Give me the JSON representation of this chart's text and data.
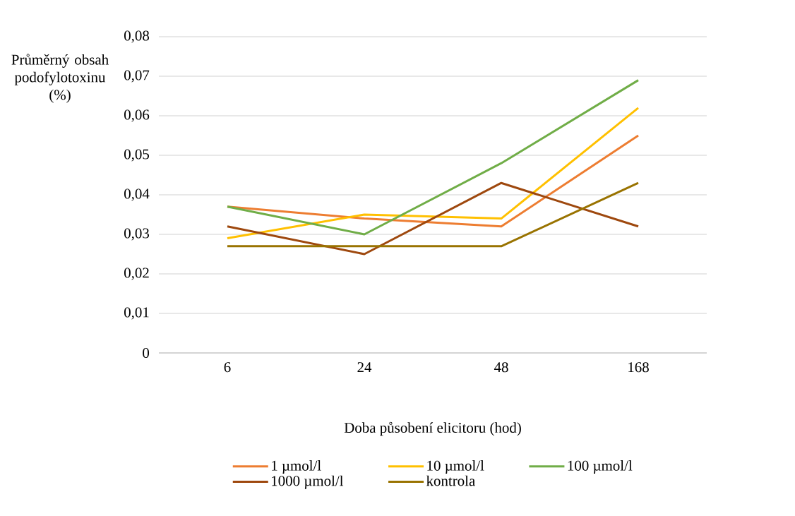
{
  "chart_data": {
    "type": "line",
    "ylabel": "Průměrný obsah podofylotoxinu (%)",
    "xlabel": "Doba působení elicitoru (hod)",
    "categories": [
      "6",
      "24",
      "48",
      "168"
    ],
    "series": [
      {
        "name": "1 µmol/l",
        "color": "#ed7d31",
        "values": [
          0.037,
          0.034,
          0.032,
          0.055
        ]
      },
      {
        "name": "10 µmol/l",
        "color": "#ffc000",
        "values": [
          0.029,
          0.035,
          0.034,
          0.062
        ]
      },
      {
        "name": "100 µmol/l",
        "color": "#70ad47",
        "values": [
          0.037,
          0.03,
          0.048,
          0.069
        ]
      },
      {
        "name": "1000 µmol/l",
        "color": "#9e480e",
        "values": [
          0.032,
          0.025,
          0.043,
          0.032
        ]
      },
      {
        "name": "kontrola",
        "color": "#997300",
        "values": [
          0.027,
          0.027,
          0.027,
          0.043
        ]
      }
    ],
    "ylim": [
      0,
      0.08
    ],
    "yticks": [
      0,
      {
        "value": 0.01,
        "label": "0,01"
      },
      {
        "value": 0.02,
        "label": "0,02"
      },
      {
        "value": 0.03,
        "label": "0,03"
      },
      {
        "value": 0.04,
        "label": "0,04"
      },
      {
        "value": 0.05,
        "label": "0,05"
      },
      {
        "value": 0.06,
        "label": "0,06"
      },
      {
        "value": 0.07,
        "label": "0,07"
      },
      {
        "value": 0.08,
        "label": "0,08"
      }
    ],
    "grid": "y",
    "legend": "bottom",
    "marker": "none",
    "line_style": "solid"
  }
}
